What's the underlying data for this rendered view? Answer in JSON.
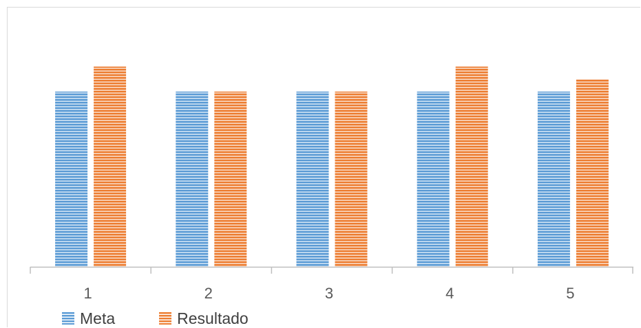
{
  "chart_data": {
    "type": "bar",
    "categories": [
      "1",
      "2",
      "3",
      "4",
      "5"
    ],
    "series": [
      {
        "name": "Meta",
        "values": [
          7,
          7,
          7,
          7,
          7
        ],
        "color": "#5b9bd5"
      },
      {
        "name": "Resultado",
        "values": [
          8,
          7,
          7,
          8,
          7.5
        ],
        "color": "#ed7d31"
      }
    ],
    "title": "",
    "xlabel": "",
    "ylabel": "",
    "ylim": [
      0,
      10
    ],
    "grid": false,
    "legend": "bottom-left"
  }
}
